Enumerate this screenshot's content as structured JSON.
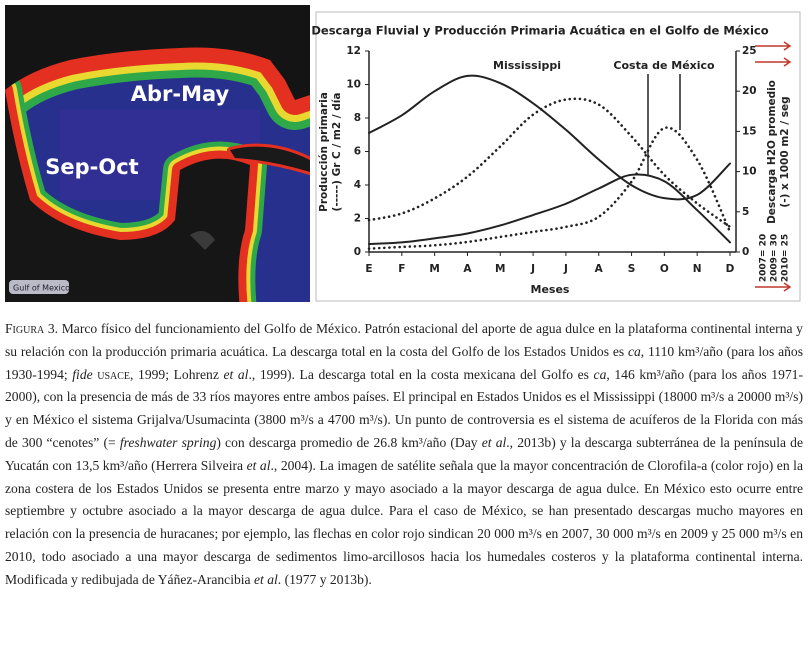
{
  "image": {
    "labels": [
      "Abr-May",
      "Sep-Oct",
      "Gulf of Mexico"
    ]
  },
  "chart_data": {
    "type": "line",
    "title": "Descarga Fluvial y Producción Primaria Acuática en el Golfo de México",
    "x_label": "Meses",
    "y_label": [
      "Producción primaria",
      "(-----) Gr C / m2 / día"
    ],
    "y2_label": [
      "Descarga H2O promedio",
      "(-) x 1000 m2 / seg"
    ],
    "annotations": [
      "Mississippi",
      "Costa de México"
    ],
    "side_notes": [
      "2007= 20",
      "2009= 30",
      "2010= 25"
    ],
    "categories": [
      "E",
      "F",
      "M",
      "A",
      "M",
      "J",
      "J",
      "A",
      "S",
      "O",
      "N",
      "D"
    ],
    "ylim": [
      0,
      12
    ],
    "yticks": [
      0,
      2,
      4,
      6,
      8,
      10,
      12
    ],
    "y2lim": [
      0,
      25
    ],
    "y2ticks": [
      0,
      5,
      10,
      15,
      20,
      25
    ],
    "series": [
      {
        "color": "#222222",
        "line_style": "solid",
        "axis": "y2",
        "values": [
          14.8,
          17,
          20,
          21.9,
          21,
          18.5,
          15.2,
          11.5,
          8.3,
          6.7,
          7.1,
          11
        ]
      },
      {
        "color": "#222222",
        "line_style": "solid",
        "axis": "y2",
        "values": [
          1,
          1.2,
          1.7,
          2.3,
          3.3,
          4.6,
          6,
          7.9,
          9.6,
          8.8,
          5.2,
          1.2
        ]
      },
      {
        "color": "#222222",
        "line_style": "dotted",
        "values": [
          1.9,
          2.3,
          3.2,
          4.5,
          6.3,
          8.2,
          9.1,
          8.8,
          6.9,
          4.6,
          2.9,
          1.5
        ]
      },
      {
        "color": "#222222",
        "line_style": "dotted",
        "values": [
          0.2,
          0.3,
          0.4,
          0.6,
          0.9,
          1.2,
          1.5,
          2.1,
          4.2,
          7.4,
          5.5,
          1.2
        ]
      }
    ]
  },
  "caption": [
    {
      "text": "Figura 3.",
      "style": "smallcaps"
    },
    {
      "text": " Marco físico del funcionamiento del Golfo de México. Patrón estacional del aporte de agua dulce en la plataforma continental interna y su relación con la producción primaria acuática. La descarga total en la costa del Golfo de los Estados Unidos es "
    },
    {
      "text": "ca",
      "style": "italic"
    },
    {
      "text": ", 1110 km³/año (para los años 1930-1994; "
    },
    {
      "text": "fide",
      "style": "italic"
    },
    {
      "text": " usace",
      "style": "smallcaps"
    },
    {
      "text": ", 1999; Lohrenz "
    },
    {
      "text": "et al",
      "style": "italic"
    },
    {
      "text": "., 1999). La descarga total en la costa mexicana del Golfo es "
    },
    {
      "text": "ca",
      "style": "italic"
    },
    {
      "text": ", 146 km³/año (para los años 1971-2000), con la presencia de más de 33 ríos mayores entre ambos países. El principal en Estados Unidos es el Mississippi (18000 m³/s a 20000 m³/s) y en México el sistema Grijalva/Usumacinta (3800 m³/s a 4700 m³/s). Un punto de controversia es el sistema de acuíferos de la Florida con más de 300 “cenotes” (= "
    },
    {
      "text": "freshwater spring",
      "style": "italic"
    },
    {
      "text": ") con descarga promedio de 26.8 km³/año (Day "
    },
    {
      "text": "et al",
      "style": "italic"
    },
    {
      "text": "., 2013b) y la descarga subterránea de la península de Yucatán con 13,5 km³/año (Herrera Silveira "
    },
    {
      "text": "et al",
      "style": "italic"
    },
    {
      "text": "., 2004). La imagen de satélite señala que la mayor concentración de Clorofila-a (color rojo) en la zona costera de los Estados Unidos se presenta entre marzo y mayo asociado a la mayor descarga de agua dulce. En México esto ocurre entre septiembre y octubre asociado a la mayor descarga de agua dulce. Para el caso de México, se han presentado descargas mucho mayores en relación con la presencia de huracanes; por ejemplo, las flechas en color rojo sindican 20 000 m³/s en 2007, 30 000 m³/s en 2009 y 25 000 m³/s en 2010, todo asociado a una mayor descarga de sedimentos limo-arcillosos hacia los humedales costeros y la plataforma continental interna. Modificada y redibujada de Yáñez-Arancibia "
    },
    {
      "text": "et al",
      "style": "italic"
    },
    {
      "text": ". (1977 y 2013b)."
    }
  ]
}
